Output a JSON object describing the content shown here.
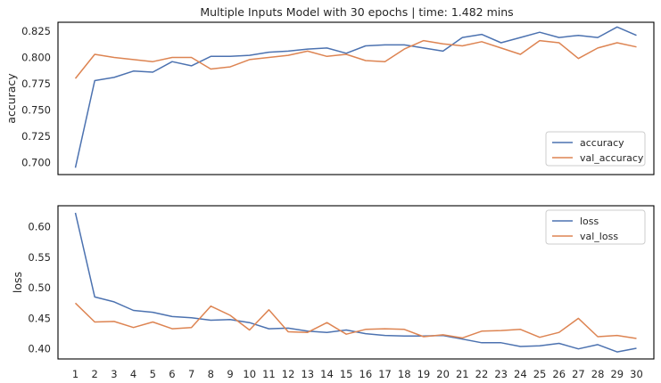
{
  "figure": {
    "title": "Multiple Inputs Model with 30 epochs | time: 1.482 mins"
  },
  "chart_data": [
    {
      "type": "line",
      "title": "Multiple Inputs Model with 30 epochs | time: 1.482 mins",
      "xlabel": "",
      "ylabel": "accuracy",
      "x": [
        1,
        2,
        3,
        4,
        5,
        6,
        7,
        8,
        9,
        10,
        11,
        12,
        13,
        14,
        15,
        16,
        17,
        18,
        19,
        20,
        21,
        22,
        23,
        24,
        25,
        26,
        27,
        28,
        29,
        30
      ],
      "xlim": [
        0.1,
        30.9
      ],
      "ylim": [
        0.6885,
        0.8335
      ],
      "yticks": [
        0.7,
        0.725,
        0.75,
        0.775,
        0.8,
        0.825
      ],
      "ytick_labels": [
        "0.700",
        "0.725",
        "0.750",
        "0.775",
        "0.800",
        "0.825"
      ],
      "xticks_visible": false,
      "grid": false,
      "legend_position": "lower right",
      "series": [
        {
          "name": "accuracy",
          "color": "#4c72b0",
          "values": [
            0.695,
            0.778,
            0.781,
            0.787,
            0.786,
            0.796,
            0.792,
            0.801,
            0.801,
            0.802,
            0.805,
            0.806,
            0.808,
            0.809,
            0.804,
            0.811,
            0.812,
            0.812,
            0.809,
            0.806,
            0.819,
            0.822,
            0.814,
            0.819,
            0.824,
            0.819,
            0.821,
            0.819,
            0.829,
            0.821
          ]
        },
        {
          "name": "val_accuracy",
          "color": "#dd8452",
          "values": [
            0.78,
            0.803,
            0.8,
            0.798,
            0.796,
            0.8,
            0.8,
            0.789,
            0.791,
            0.798,
            0.8,
            0.802,
            0.806,
            0.801,
            0.803,
            0.797,
            0.796,
            0.808,
            0.816,
            0.813,
            0.811,
            0.815,
            0.809,
            0.803,
            0.816,
            0.814,
            0.799,
            0.809,
            0.814,
            0.81
          ]
        }
      ]
    },
    {
      "type": "line",
      "xlabel": "",
      "ylabel": "loss",
      "x": [
        1,
        2,
        3,
        4,
        5,
        6,
        7,
        8,
        9,
        10,
        11,
        12,
        13,
        14,
        15,
        16,
        17,
        18,
        19,
        20,
        21,
        22,
        23,
        24,
        25,
        26,
        27,
        28,
        29,
        30
      ],
      "xlim": [
        0.1,
        30.9
      ],
      "ylim": [
        0.3835,
        0.6345
      ],
      "yticks": [
        0.4,
        0.45,
        0.5,
        0.55,
        0.6
      ],
      "ytick_labels": [
        "0.40",
        "0.45",
        "0.50",
        "0.55",
        "0.60"
      ],
      "xtick_labels": [
        "1",
        "2",
        "3",
        "4",
        "5",
        "6",
        "7",
        "8",
        "9",
        "10",
        "11",
        "12",
        "13",
        "14",
        "15",
        "16",
        "17",
        "18",
        "19",
        "20",
        "21",
        "22",
        "23",
        "24",
        "25",
        "26",
        "27",
        "28",
        "29",
        "30"
      ],
      "grid": false,
      "legend_position": "upper right",
      "series": [
        {
          "name": "loss",
          "color": "#4c72b0",
          "values": [
            0.623,
            0.485,
            0.477,
            0.463,
            0.46,
            0.453,
            0.451,
            0.447,
            0.448,
            0.443,
            0.433,
            0.434,
            0.429,
            0.427,
            0.431,
            0.425,
            0.422,
            0.421,
            0.421,
            0.422,
            0.416,
            0.41,
            0.41,
            0.404,
            0.405,
            0.409,
            0.4,
            0.407,
            0.395,
            0.401
          ]
        },
        {
          "name": "val_loss",
          "color": "#dd8452",
          "values": [
            0.475,
            0.444,
            0.445,
            0.435,
            0.444,
            0.433,
            0.435,
            0.47,
            0.455,
            0.431,
            0.464,
            0.428,
            0.427,
            0.443,
            0.424,
            0.432,
            0.433,
            0.432,
            0.42,
            0.423,
            0.418,
            0.429,
            0.43,
            0.432,
            0.419,
            0.427,
            0.45,
            0.42,
            0.422,
            0.417
          ]
        }
      ]
    }
  ]
}
